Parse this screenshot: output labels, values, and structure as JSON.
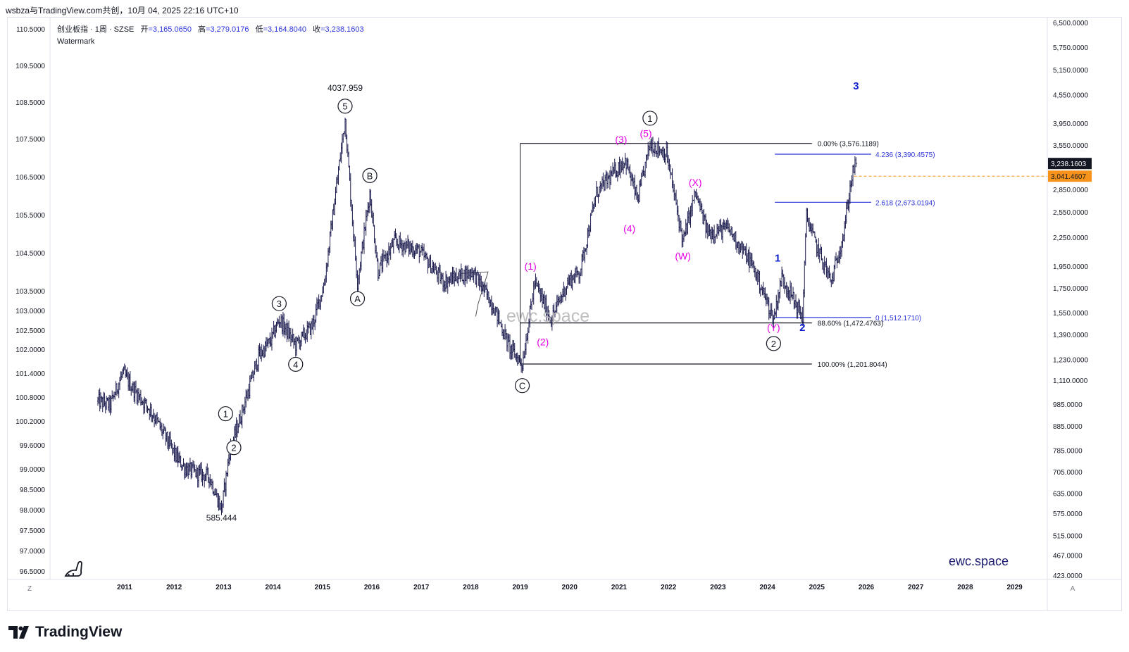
{
  "header": {
    "text": "wsbza与TradingView.com共创，10月 04, 2025 22:16 UTC+10"
  },
  "legend": {
    "symbol": "创业板指 · 1周 · SZSE",
    "o_label": "开",
    "o_value": "=3,165.0650",
    "h_label": "高",
    "h_value": "=3,279.0176",
    "l_label": "低",
    "l_value": "=3,164.8040",
    "c_label": "收",
    "c_value": "=3,238.1603",
    "watermark_label": "Watermark"
  },
  "left_axis": {
    "labels": [
      "110.5000",
      "109.5000",
      "108.5000",
      "107.5000",
      "106.5000",
      "105.5000",
      "104.5000",
      "103.5000",
      "103.0000",
      "102.5000",
      "102.0000",
      "101.4000",
      "100.8000",
      "100.2000",
      "99.6000",
      "99.0000",
      "98.5000",
      "98.0000",
      "97.5000",
      "97.0000",
      "96.5000"
    ],
    "corner": "Z"
  },
  "right_axis": {
    "labels": [
      "6,500.0000",
      "5,750.0000",
      "5,150.0000",
      "4,550.0000",
      "3,950.0000",
      "3,550.0000",
      "2,850.0000",
      "2,550.0000",
      "2,250.0000",
      "1,950.0000",
      "1,750.0000",
      "1,550.0000",
      "1,390.0000",
      "1,230.0000",
      "1,110.0000",
      "985.0000",
      "885.0000",
      "785.0000",
      "705.0000",
      "635.0000",
      "575.0000",
      "515.0000",
      "467.0000",
      "423.0000"
    ],
    "price_tag": "3,238.1603",
    "orange_tag": "3,041.4607",
    "corner": "A"
  },
  "x_axis": {
    "labels": [
      "2011",
      "2012",
      "2013",
      "2014",
      "2015",
      "2016",
      "2017",
      "2018",
      "2019",
      "2020",
      "2021",
      "2022",
      "2023",
      "2024",
      "2025",
      "2026",
      "2027",
      "2028",
      "2029"
    ]
  },
  "chart_data": {
    "type": "candlestick",
    "frequency": "weekly",
    "scale": "log",
    "ylim": [
      423,
      6500
    ],
    "price_points": [
      {
        "date": "2010-06",
        "price": 1000
      },
      {
        "date": "2010-09",
        "price": 980
      },
      {
        "date": "2010-12",
        "price": 1150
      },
      {
        "date": "2011-03",
        "price": 1050
      },
      {
        "date": "2011-07",
        "price": 950
      },
      {
        "date": "2011-10",
        "price": 850
      },
      {
        "date": "2012-01",
        "price": 760
      },
      {
        "date": "2012-03",
        "price": 720
      },
      {
        "date": "2012-06",
        "price": 700
      },
      {
        "date": "2012-09",
        "price": 690
      },
      {
        "date": "2012-12",
        "price": 585.444
      },
      {
        "date": "2013-02",
        "price": 780
      },
      {
        "date": "2013-05",
        "price": 950
      },
      {
        "date": "2013-09",
        "price": 1250
      },
      {
        "date": "2013-12",
        "price": 1350
      },
      {
        "date": "2014-02",
        "price": 1500
      },
      {
        "date": "2014-06",
        "price": 1320
      },
      {
        "date": "2014-10",
        "price": 1450
      },
      {
        "date": "2015-01",
        "price": 1800
      },
      {
        "date": "2015-03",
        "price": 2500
      },
      {
        "date": "2015-06",
        "price": 4037.959
      },
      {
        "date": "2015-08",
        "price": 2300
      },
      {
        "date": "2015-09",
        "price": 1800
      },
      {
        "date": "2015-12",
        "price": 2800
      },
      {
        "date": "2016-02",
        "price": 1900
      },
      {
        "date": "2016-06",
        "price": 2200
      },
      {
        "date": "2016-12",
        "price": 2100
      },
      {
        "date": "2017-06",
        "price": 1800
      },
      {
        "date": "2017-09",
        "price": 1850
      },
      {
        "date": "2018-01",
        "price": 1900
      },
      {
        "date": "2018-06",
        "price": 1600
      },
      {
        "date": "2018-10",
        "price": 1300
      },
      {
        "date": "2019-01",
        "price": 1201.8044
      },
      {
        "date": "2019-04",
        "price": 1800
      },
      {
        "date": "2019-08",
        "price": 1500
      },
      {
        "date": "2019-12",
        "price": 1800
      },
      {
        "date": "2020-03",
        "price": 1900
      },
      {
        "date": "2020-07",
        "price": 2800
      },
      {
        "date": "2021-02",
        "price": 3300
      },
      {
        "date": "2021-05",
        "price": 2700
      },
      {
        "date": "2021-08",
        "price": 3576.1189
      },
      {
        "date": "2021-12",
        "price": 3400
      },
      {
        "date": "2022-04",
        "price": 2200
      },
      {
        "date": "2022-07",
        "price": 2800
      },
      {
        "date": "2022-10",
        "price": 2300
      },
      {
        "date": "2023-03",
        "price": 2350
      },
      {
        "date": "2023-09",
        "price": 1950
      },
      {
        "date": "2024-02",
        "price": 1500
      },
      {
        "date": "2024-04",
        "price": 1850
      },
      {
        "date": "2024-09",
        "price": 1512.171
      },
      {
        "date": "2024-10",
        "price": 2500
      },
      {
        "date": "2024-12",
        "price": 2200
      },
      {
        "date": "2025-04",
        "price": 1800
      },
      {
        "date": "2025-07",
        "price": 2300
      },
      {
        "date": "2025-09",
        "price": 3041.4607
      },
      {
        "date": "2025-10",
        "price": 3238.1603
      }
    ],
    "fib_retracement": [
      {
        "label": "0.00% (3,576.1189)",
        "price": 3576.1189
      },
      {
        "label": "88.60% (1,472.4763)",
        "price": 1472.4763
      },
      {
        "label": "100.00% (1,201.8044)",
        "price": 1201.8044
      }
    ],
    "fib_extension": [
      {
        "label": "4.236 (3,390.4575)",
        "price": 3390.4575
      },
      {
        "label": "2.618 (2,673.0194)",
        "price": 2673.0194
      },
      {
        "label": "0 (1,512.1710)",
        "price": 1512.171
      }
    ],
    "price_labels": [
      {
        "text": "4037.959",
        "date": "2015-06",
        "price": 4037.959
      },
      {
        "text": "585.444",
        "date": "2012-12",
        "price": 585.444
      }
    ],
    "wave_labels_circled": [
      {
        "text": "1",
        "date": "2013-01",
        "price": 940
      },
      {
        "text": "2",
        "date": "2013-03",
        "price": 795
      },
      {
        "text": "3",
        "date": "2014-02",
        "price": 1620
      },
      {
        "text": "4",
        "date": "2014-06",
        "price": 1200
      },
      {
        "text": "5",
        "date": "2015-06",
        "price": 4300
      },
      {
        "text": "A",
        "date": "2015-09",
        "price": 1660
      },
      {
        "text": "B",
        "date": "2015-12",
        "price": 3050
      },
      {
        "text": "C",
        "date": "2019-01",
        "price": 1080
      },
      {
        "text": "1",
        "date": "2021-08",
        "price": 4050
      },
      {
        "text": "2",
        "date": "2024-02",
        "price": 1330
      }
    ],
    "wave_labels_magenta": [
      {
        "text": "(1)",
        "date": "2019-03",
        "price": 1950
      },
      {
        "text": "(2)",
        "date": "2019-06",
        "price": 1340
      },
      {
        "text": "(3)",
        "date": "2021-01",
        "price": 3650
      },
      {
        "text": "(4)",
        "date": "2021-03",
        "price": 2350
      },
      {
        "text": "(5)",
        "date": "2021-07",
        "price": 3760
      },
      {
        "text": "(W)",
        "date": "2022-04",
        "price": 2050
      },
      {
        "text": "(X)",
        "date": "2022-07",
        "price": 2950
      },
      {
        "text": "(Y)",
        "date": "2024-02",
        "price": 1440
      }
    ],
    "wave_labels_blue": [
      {
        "text": "1",
        "date": "2024-03",
        "price": 2030
      },
      {
        "text": "2",
        "date": "2024-09",
        "price": 1440
      },
      {
        "text": "3",
        "date": "2025-10",
        "price": 4750
      }
    ],
    "overlay_text": [
      {
        "text": "ewc.space",
        "position": "center-lower"
      },
      {
        "text": "ewc.space",
        "position": "bottom-right"
      }
    ]
  },
  "colors": {
    "candle": "#1a1a4e",
    "magenta": "#e600e6",
    "blue": "#0d1fcf",
    "fib_ext": "#2b34d8",
    "orange": "#f7931a",
    "price_tag_bg": "#131722"
  },
  "footer": {
    "brand": "TradingView"
  }
}
